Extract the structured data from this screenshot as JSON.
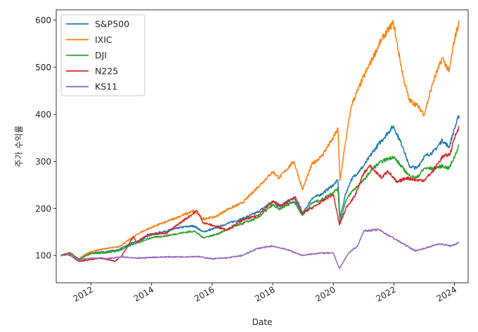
{
  "chart_data": {
    "type": "line",
    "title": "",
    "xlabel": "Date",
    "ylabel": "주가 수익률",
    "xlim": [
      2010.85,
      2024.45
    ],
    "ylim": [
      42,
      622
    ],
    "x_ticks": [
      2012,
      2014,
      2016,
      2018,
      2020,
      2022,
      2024
    ],
    "x_tick_labels": [
      "2012",
      "2014",
      "2016",
      "2018",
      "2020",
      "2022",
      "2024"
    ],
    "y_ticks": [
      100,
      200,
      300,
      400,
      500,
      600
    ],
    "y_tick_labels": [
      "100",
      "200",
      "300",
      "400",
      "500",
      "600"
    ],
    "grid": false,
    "legend_position": "upper-left",
    "series": [
      {
        "name": "S&P500",
        "color": "#1f77b4",
        "x": [
          2011.0,
          2011.3,
          2011.6,
          2011.8,
          2012.0,
          2012.5,
          2012.9,
          2013.3,
          2013.6,
          2014.0,
          2014.5,
          2015.0,
          2015.4,
          2015.7,
          2016.1,
          2016.5,
          2017.0,
          2017.5,
          2018.0,
          2018.2,
          2018.7,
          2018.98,
          2019.3,
          2019.6,
          2020.0,
          2020.15,
          2020.22,
          2020.4,
          2020.6,
          2021.0,
          2021.3,
          2021.6,
          2021.98,
          2022.3,
          2022.5,
          2022.75,
          2023.0,
          2023.3,
          2023.6,
          2023.82,
          2024.0,
          2024.15
        ],
        "values": [
          100,
          104,
          92,
          100,
          105,
          108,
          112,
          125,
          132,
          145,
          152,
          160,
          163,
          150,
          158,
          168,
          178,
          192,
          215,
          205,
          222,
          188,
          222,
          230,
          250,
          260,
          180,
          230,
          262,
          290,
          320,
          345,
          375,
          330,
          290,
          285,
          310,
          320,
          345,
          330,
          370,
          398
        ]
      },
      {
        "name": "IXIC",
        "color": "#ff7f0e",
        "x": [
          2011.0,
          2011.3,
          2011.6,
          2011.8,
          2012.0,
          2012.5,
          2012.9,
          2013.3,
          2013.6,
          2014.0,
          2014.5,
          2015.0,
          2015.4,
          2015.7,
          2016.1,
          2016.5,
          2017.0,
          2017.5,
          2018.0,
          2018.2,
          2018.7,
          2018.98,
          2019.3,
          2019.6,
          2020.0,
          2020.15,
          2020.22,
          2020.4,
          2020.6,
          2021.0,
          2021.3,
          2021.6,
          2021.98,
          2022.3,
          2022.5,
          2022.75,
          2023.0,
          2023.3,
          2023.6,
          2023.82,
          2024.0,
          2024.15
        ],
        "values": [
          100,
          106,
          92,
          102,
          108,
          115,
          118,
          135,
          148,
          160,
          172,
          185,
          195,
          178,
          182,
          198,
          212,
          245,
          278,
          265,
          300,
          240,
          295,
          310,
          350,
          370,
          260,
          340,
          420,
          480,
          520,
          560,
          595,
          480,
          430,
          420,
          400,
          470,
          520,
          490,
          560,
          595
        ]
      },
      {
        "name": "DJI",
        "color": "#2ca02c",
        "x": [
          2011.0,
          2011.3,
          2011.6,
          2011.8,
          2012.0,
          2012.5,
          2012.9,
          2013.3,
          2013.6,
          2014.0,
          2014.5,
          2015.0,
          2015.4,
          2015.7,
          2016.1,
          2016.5,
          2017.0,
          2017.5,
          2018.0,
          2018.2,
          2018.7,
          2018.98,
          2019.3,
          2019.6,
          2020.0,
          2020.15,
          2020.22,
          2020.4,
          2020.6,
          2021.0,
          2021.3,
          2021.6,
          2021.98,
          2022.3,
          2022.5,
          2022.75,
          2023.0,
          2023.3,
          2023.6,
          2023.82,
          2024.0,
          2024.15
        ],
        "values": [
          100,
          106,
          92,
          98,
          104,
          106,
          110,
          122,
          128,
          138,
          142,
          148,
          152,
          138,
          144,
          155,
          168,
          180,
          208,
          198,
          215,
          185,
          212,
          218,
          235,
          242,
          170,
          215,
          235,
          260,
          285,
          300,
          310,
          285,
          270,
          265,
          285,
          285,
          290,
          285,
          310,
          335
        ]
      },
      {
        "name": "N225",
        "color": "#d62728",
        "x": [
          2011.0,
          2011.2,
          2011.6,
          2011.9,
          2012.3,
          2012.8,
          2013.0,
          2013.4,
          2013.5,
          2013.9,
          2014.5,
          2015.0,
          2015.5,
          2015.7,
          2016.1,
          2016.5,
          2017.0,
          2017.5,
          2018.0,
          2018.3,
          2018.75,
          2018.98,
          2019.4,
          2019.7,
          2020.0,
          2020.2,
          2020.45,
          2020.7,
          2021.0,
          2021.2,
          2021.6,
          2021.8,
          2022.1,
          2022.4,
          2022.75,
          2023.0,
          2023.3,
          2023.6,
          2023.85,
          2024.0,
          2024.15
        ],
        "values": [
          100,
          104,
          88,
          90,
          95,
          88,
          98,
          140,
          128,
          145,
          148,
          172,
          195,
          170,
          162,
          155,
          175,
          185,
          215,
          205,
          225,
          190,
          205,
          218,
          230,
          165,
          205,
          225,
          275,
          290,
          265,
          280,
          255,
          265,
          260,
          260,
          280,
          310,
          315,
          350,
          375
        ]
      },
      {
        "name": "KS11",
        "color": "#9467bd",
        "x": [
          2011.0,
          2011.3,
          2011.6,
          2012.0,
          2012.5,
          2013.0,
          2013.5,
          2014.0,
          2014.5,
          2015.0,
          2015.5,
          2016.0,
          2016.5,
          2017.0,
          2017.5,
          2018.0,
          2018.5,
          2018.98,
          2019.5,
          2020.0,
          2020.2,
          2020.5,
          2020.8,
          2021.0,
          2021.5,
          2021.9,
          2022.3,
          2022.7,
          2023.0,
          2023.5,
          2023.9,
          2024.15
        ],
        "values": [
          100,
          102,
          90,
          95,
          93,
          97,
          94,
          96,
          97,
          97,
          98,
          93,
          95,
          100,
          115,
          120,
          112,
          100,
          105,
          105,
          72,
          105,
          120,
          152,
          155,
          140,
          125,
          110,
          115,
          125,
          120,
          128
        ]
      }
    ]
  }
}
